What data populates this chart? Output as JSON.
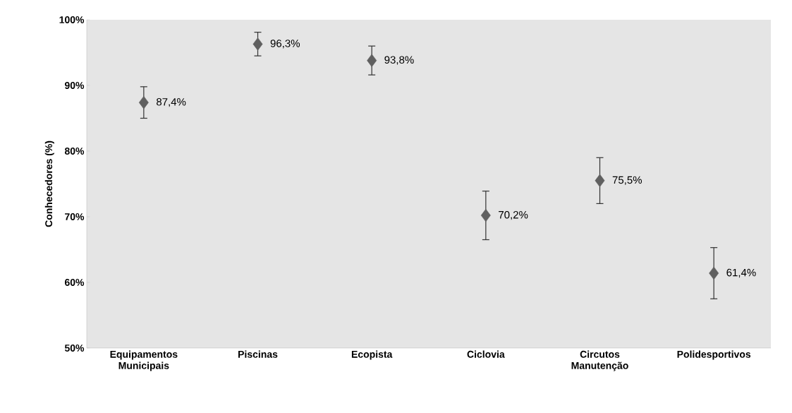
{
  "chart_data": {
    "type": "scatter",
    "ylabel": "Conhecedores (%)",
    "categories": [
      "Equipamentos Municipais",
      "Piscinas",
      "Ecopista",
      "Ciclovia",
      "Circutos Manutenção",
      "Polidesportivos"
    ],
    "values": [
      87.4,
      96.3,
      93.8,
      70.2,
      75.5,
      61.4
    ],
    "errors": [
      2.4,
      1.8,
      2.2,
      3.7,
      3.5,
      3.9
    ],
    "value_labels": [
      "87,4%",
      "96,3%",
      "93,8%",
      "70,2%",
      "75,5%",
      "61,4%"
    ],
    "color": "#606060",
    "marker": "diamond",
    "ylim": [
      50,
      100
    ],
    "yticks": [
      {
        "value": 50,
        "label": "50%"
      },
      {
        "value": 60,
        "label": "60%"
      },
      {
        "value": 70,
        "label": "70%"
      },
      {
        "value": 80,
        "label": "80%"
      },
      {
        "value": 90,
        "label": "90%"
      },
      {
        "value": 100,
        "label": "100%"
      }
    ],
    "grid": false
  }
}
